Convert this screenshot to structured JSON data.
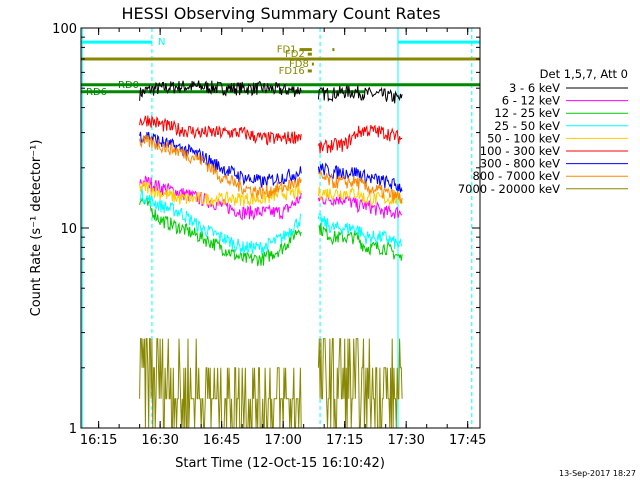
{
  "chart_data": {
    "type": "line",
    "title": "HESSI Observing Summary Count Rates",
    "xlabel": "Start Time (12-Oct-15 16:10:42)",
    "ylabel": "Count Rate (s⁻¹ detector⁻¹)",
    "y_scale": "log",
    "ylim": [
      1,
      100
    ],
    "xlim": [
      "16:10:42",
      "17:48:00"
    ],
    "x_ticks": [
      "16:15",
      "16:30",
      "16:45",
      "17:00",
      "17:15",
      "17:30",
      "17:45"
    ],
    "y_ticks": [
      "1",
      "10",
      "100"
    ],
    "legend_title": "Det 1,5,7, Att 0",
    "legend_position": "right",
    "timestamp": "13-Sep-2017 18:27",
    "data_gaps": [
      [
        "16:10:42",
        "16:25:00"
      ],
      [
        "17:04:30",
        "17:08:30"
      ],
      [
        "17:30:00",
        "17:48:00"
      ]
    ],
    "series": [
      {
        "name": "3 - 6 keV",
        "color": "#000000",
        "x": [
          "16:25",
          "16:27",
          "16:30",
          "16:35",
          "16:40",
          "16:45",
          "16:50",
          "16:55",
          "17:00",
          "17:04",
          "17:09",
          "17:12",
          "17:15",
          "17:18",
          "17:20",
          "17:25",
          "17:29"
        ],
        "values": [
          47,
          49,
          50,
          51,
          51,
          50,
          50,
          50,
          49,
          49,
          47,
          47,
          48,
          48,
          47,
          46,
          44
        ]
      },
      {
        "name": "6 - 12 keV",
        "color": "#ff00ff",
        "x": [
          "16:25",
          "16:27",
          "16:30",
          "16:35",
          "16:40",
          "16:45",
          "16:50",
          "16:55",
          "17:00",
          "17:04",
          "17:09",
          "17:12",
          "17:15",
          "17:18",
          "17:20",
          "17:25",
          "17:29"
        ],
        "values": [
          17,
          17,
          16,
          15,
          14,
          13,
          12,
          12,
          12,
          14,
          14,
          14,
          14,
          13,
          13,
          12,
          12
        ]
      },
      {
        "name": "12 - 25 keV",
        "color": "#00cc00",
        "x": [
          "16:25",
          "16:27",
          "16:30",
          "16:35",
          "16:40",
          "16:45",
          "16:50",
          "16:55",
          "17:00",
          "17:04",
          "17:09",
          "17:12",
          "17:15",
          "17:18",
          "17:20",
          "17:25",
          "17:29"
        ],
        "values": [
          14,
          13,
          11,
          10,
          9,
          8,
          7,
          7,
          8,
          10,
          10,
          9,
          9,
          9,
          8,
          8,
          7
        ]
      },
      {
        "name": "25 - 50 keV",
        "color": "#00ffff",
        "x": [
          "16:25",
          "16:27",
          "16:30",
          "16:35",
          "16:40",
          "16:45",
          "16:50",
          "16:55",
          "17:00",
          "17:04",
          "17:09",
          "17:12",
          "17:15",
          "17:18",
          "17:20",
          "17:25",
          "17:29"
        ],
        "values": [
          15,
          14,
          13,
          12,
          10,
          9,
          8,
          8,
          9,
          11,
          11,
          10,
          10,
          10,
          9,
          9,
          8
        ]
      },
      {
        "name": "50 - 100 keV",
        "color": "#ffcc00",
        "x": [
          "16:25",
          "16:27",
          "16:30",
          "16:35",
          "16:40",
          "16:45",
          "16:50",
          "16:55",
          "17:00",
          "17:04",
          "17:09",
          "17:12",
          "17:15",
          "17:18",
          "17:20",
          "17:25",
          "17:29"
        ],
        "values": [
          16,
          16,
          15,
          14,
          14,
          14,
          14,
          14,
          15,
          15,
          15,
          15,
          15,
          15,
          14,
          14,
          14
        ]
      },
      {
        "name": "100 - 300 keV",
        "color": "#ff0000",
        "x": [
          "16:25",
          "16:27",
          "16:30",
          "16:35",
          "16:40",
          "16:45",
          "16:50",
          "16:55",
          "17:00",
          "17:04",
          "17:09",
          "17:12",
          "17:15",
          "17:18",
          "17:20",
          "17:25",
          "17:29"
        ],
        "values": [
          34,
          35,
          33,
          31,
          30,
          30,
          30,
          28,
          28,
          29,
          25,
          26,
          26,
          30,
          31,
          30,
          28
        ]
      },
      {
        "name": "300 - 800 keV",
        "color": "#0000ff",
        "x": [
          "16:25",
          "16:27",
          "16:30",
          "16:35",
          "16:40",
          "16:45",
          "16:50",
          "16:55",
          "17:00",
          "17:04",
          "17:09",
          "17:12",
          "17:15",
          "17:18",
          "17:20",
          "17:25",
          "17:29"
        ],
        "values": [
          29,
          29,
          27,
          25,
          23,
          20,
          18,
          17,
          18,
          19,
          20,
          19,
          19,
          19,
          18,
          17,
          16
        ]
      },
      {
        "name": "800 - 7000 keV",
        "color": "#ff8800",
        "x": [
          "16:25",
          "16:27",
          "16:30",
          "16:35",
          "16:40",
          "16:45",
          "16:50",
          "16:55",
          "17:00",
          "17:04",
          "17:09",
          "17:12",
          "17:15",
          "17:18",
          "17:20",
          "17:25",
          "17:29"
        ],
        "values": [
          27,
          27,
          26,
          24,
          22,
          18,
          16,
          15,
          16,
          17,
          18,
          17,
          17,
          17,
          16,
          15,
          14
        ]
      },
      {
        "name": "7000 - 20000 keV",
        "color": "#888800",
        "x": [
          "16:25",
          "16:27",
          "16:30",
          "16:33",
          "16:35",
          "16:38",
          "16:40",
          "16:45",
          "16:50",
          "16:55",
          "17:00",
          "17:04",
          "17:09",
          "17:12",
          "17:15",
          "17:18",
          "17:20",
          "17:25",
          "17:29"
        ],
        "values": [
          2.5,
          2.5,
          2.3,
          2.2,
          1.5,
          1.4,
          1.2,
          1.1,
          1.0,
          1.0,
          1.0,
          1.0,
          1.7,
          1.6,
          1.5,
          1.5,
          1.4,
          1.3,
          1.2
        ]
      }
    ],
    "flags": [
      {
        "label": "N",
        "color": "#00ffff",
        "value": 85,
        "ranges": [
          [
            "16:10:42",
            "16:28:00"
          ],
          [
            "17:28:00",
            "17:48:00"
          ]
        ]
      },
      {
        "label": "",
        "color": "#888800",
        "value": 70,
        "ranges": [
          [
            "16:10:42",
            "17:48:00"
          ]
        ]
      },
      {
        "label": "FD1",
        "color": "#888800",
        "value": 78,
        "ranges": [
          [
            "17:04:00",
            "17:07:00"
          ],
          [
            "17:12:00",
            "17:12:30"
          ]
        ]
      },
      {
        "label": "FD2",
        "color": "#888800",
        "value": 74,
        "ranges": [
          [
            "17:06:00",
            "17:07:00"
          ]
        ]
      },
      {
        "label": "FD8",
        "color": "#888800",
        "value": 66,
        "ranges": [
          [
            "17:07:00",
            "17:07:30"
          ]
        ]
      },
      {
        "label": "FD16",
        "color": "#888800",
        "value": 61,
        "ranges": [
          [
            "17:06:00",
            "17:07:00"
          ]
        ]
      },
      {
        "label": "RD0",
        "color": "#008800",
        "value": 52,
        "ranges": [
          [
            "16:10:42",
            "17:48:00"
          ]
        ]
      },
      {
        "label": "RD6",
        "color": "#008800",
        "value": 48,
        "ranges": [
          [
            "16:10:42",
            "17:10:00"
          ],
          [
            "17:10:00",
            "17:20:00"
          ]
        ]
      }
    ],
    "vertical_markers": [
      {
        "x": "16:11:00",
        "color": "#00ffff",
        "style": "solid"
      },
      {
        "x": "16:28:00",
        "color": "#00ffff",
        "style": "dashed"
      },
      {
        "x": "17:09:00",
        "color": "#00ffff",
        "style": "dashed"
      },
      {
        "x": "17:28:00",
        "color": "#00ffff",
        "style": "solid"
      },
      {
        "x": "17:46:00",
        "color": "#00ffff",
        "style": "dashed"
      }
    ]
  }
}
